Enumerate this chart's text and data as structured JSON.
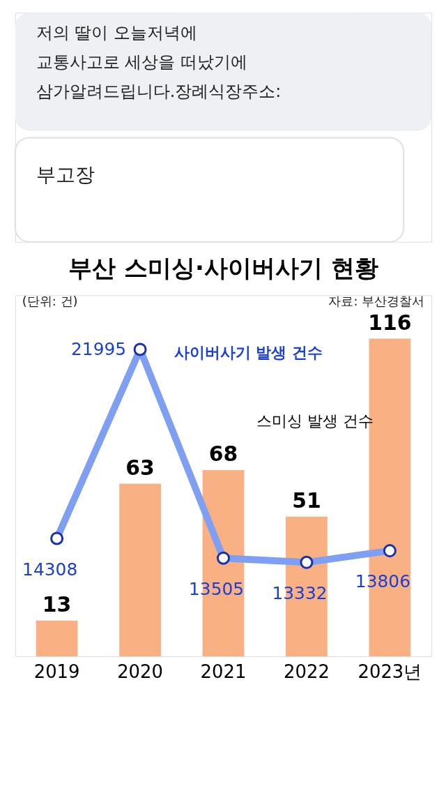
{
  "chart_data": {
    "type": "bar",
    "title": "부산 스미싱·사이버사기 현황",
    "categories": [
      "2019",
      "2020",
      "2021",
      "2022",
      "2023년"
    ],
    "series": [
      {
        "name": "스미싱 발생 건수",
        "color": "#f9b183",
        "values": [
          13,
          63,
          68,
          51,
          116
        ]
      },
      {
        "name": "사이버사기 발생 건수",
        "type": "line",
        "axis": "y2",
        "color": "#7f9ff2",
        "marker": "circle",
        "values": [
          14308,
          21995,
          13505,
          13332,
          13806
        ]
      }
    ],
    "data_labels": true,
    "annotations": [
      "저의 딸이 오늘저녁에",
      "교통사고로 세상을 떠났기에",
      "삼가알려드립니다.장례식장주소:",
      "부고장",
      "(단위: 건)",
      "자료: 부산경찰서"
    ]
  }
}
